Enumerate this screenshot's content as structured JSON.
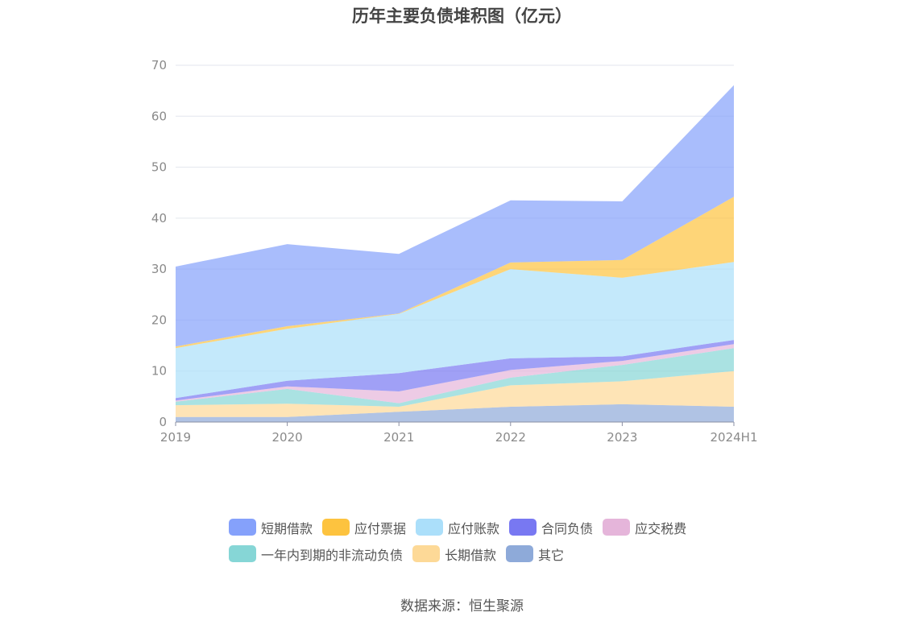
{
  "chart_data": {
    "type": "area",
    "stacked": true,
    "title": "历年主要负债堆积图（亿元）",
    "categories": [
      "2019",
      "2020",
      "2021",
      "2022",
      "2023",
      "2024H1"
    ],
    "ylim": [
      0,
      70
    ],
    "yticks": [
      "0",
      "10",
      "20",
      "30",
      "40",
      "50",
      "60",
      "70"
    ],
    "grid": true,
    "legend_position": "bottom",
    "series": [
      {
        "name": "其它",
        "color": "#8eaad9",
        "values": [
          1.0,
          1.0,
          2.0,
          3.0,
          3.5,
          3.0
        ]
      },
      {
        "name": "长期借款",
        "color": "#fdd997",
        "values": [
          2.3,
          2.6,
          1.0,
          4.2,
          4.5,
          7.0
        ]
      },
      {
        "name": "一年内到期的非流动负债",
        "color": "#86d6d6",
        "values": [
          0.7,
          2.9,
          0.7,
          1.5,
          3.2,
          4.5
        ]
      },
      {
        "name": "应交税费",
        "color": "#e5b5da",
        "values": [
          0.2,
          0.5,
          2.3,
          1.5,
          0.8,
          0.8
        ]
      },
      {
        "name": "合同负债",
        "color": "#7878f2",
        "values": [
          0.5,
          1.1,
          3.6,
          2.3,
          0.9,
          0.8
        ]
      },
      {
        "name": "应付账款",
        "color": "#abdffa",
        "values": [
          9.8,
          10.2,
          11.6,
          17.5,
          15.4,
          15.3
        ]
      },
      {
        "name": "应付票据",
        "color": "#fdc33f",
        "values": [
          0.3,
          0.5,
          0.1,
          1.3,
          3.5,
          12.8
        ]
      },
      {
        "name": "短期借款",
        "color": "#85a1fb",
        "values": [
          15.7,
          16.1,
          11.7,
          12.2,
          11.5,
          21.9
        ]
      }
    ],
    "legend_rows": [
      [
        "短期借款",
        "应付票据",
        "应付账款",
        "合同负债",
        "应交税费"
      ],
      [
        "一年内到期的非流动负债",
        "长期借款",
        "其它"
      ]
    ],
    "source": "数据来源：恒生聚源"
  }
}
